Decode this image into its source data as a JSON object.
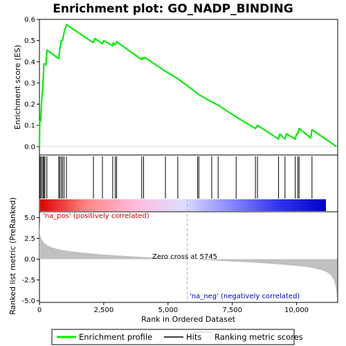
{
  "colors": {
    "es_line": "#00ee00",
    "hits": "#000000",
    "metric_fill": "#c0c0c0",
    "pos_text": "#cc0000",
    "neg_text": "#0000cc",
    "zero_line": "#b0b0b0"
  },
  "legend": {
    "items": [
      {
        "label": "Enrichment profile",
        "color": "#00ee00",
        "icon": "green-line"
      },
      {
        "label": "Hits",
        "color": "#000000",
        "icon": "black-line"
      },
      {
        "label": "Ranking metric scores",
        "color": "#c0c0c0",
        "icon": "gray-line"
      }
    ]
  },
  "chart_data": [
    {
      "type": "line",
      "panel": "enrichment",
      "title": "Enrichment plot: GO_NADP_BINDING",
      "ylabel": "Enrichment score (ES)",
      "xlim": [
        0,
        11600
      ],
      "ylim": [
        -0.04,
        0.6
      ],
      "yticks": [
        0.0,
        0.1,
        0.2,
        0.3,
        0.4,
        0.5,
        0.6
      ],
      "ytick_labels": [
        "0.0",
        "0.1",
        "0.2",
        "0.3",
        "0.4",
        "0.5",
        "0.6"
      ],
      "series": [
        {
          "x": [
            0,
            10,
            45,
            90,
            140,
            175,
            215,
            250,
            290,
            750,
            790,
            850,
            900,
            960,
            1050,
            2100,
            2150,
            2450,
            2500,
            2850,
            2870,
            2950,
            3000,
            3980,
            4000,
            4050,
            4100,
            4900,
            5380,
            6150,
            6200,
            6700,
            6950,
            7650,
            8400,
            8480,
            9300,
            9350,
            9550,
            9600,
            9950,
            10000,
            10050,
            10100,
            10550,
            10600,
            11550
          ],
          "y": [
            0.0,
            0.12,
            0.12,
            0.22,
            0.3,
            0.39,
            0.39,
            0.385,
            0.455,
            0.415,
            0.46,
            0.5,
            0.5,
            0.54,
            0.575,
            0.49,
            0.51,
            0.485,
            0.5,
            0.475,
            0.49,
            0.48,
            0.495,
            0.41,
            0.42,
            0.415,
            0.42,
            0.355,
            0.32,
            0.25,
            0.245,
            0.21,
            0.195,
            0.14,
            0.085,
            0.1,
            0.035,
            0.06,
            0.035,
            0.06,
            0.035,
            0.06,
            0.06,
            0.085,
            0.04,
            0.08,
            0.0
          ]
        }
      ]
    },
    {
      "type": "scatter",
      "panel": "hits",
      "ylabel": "",
      "xlim": [
        0,
        11600
      ],
      "hit_positions": [
        10,
        45,
        90,
        140,
        175,
        215,
        290,
        750,
        790,
        850,
        900,
        960,
        1050,
        2100,
        2450,
        2850,
        2950,
        3000,
        3980,
        4050,
        4900,
        5380,
        6150,
        6200,
        6700,
        6950,
        7650,
        8400,
        8480,
        9300,
        9550,
        9950,
        10050,
        10100,
        10600
      ],
      "gradient_stops": [
        "#dd0000",
        "#ff8888",
        "#ffbbdd",
        "#ddddff",
        "#8888ff",
        "#3333ee",
        "#0000cc"
      ]
    },
    {
      "type": "area",
      "panel": "ranked_metric",
      "xlabel": "Rank in Ordered Dataset",
      "ylabel": "Ranked list metric (PreRanked)",
      "xlim": [
        0,
        11600
      ],
      "ylim": [
        -5.2,
        5.7
      ],
      "xticks": [
        0,
        2500,
        5000,
        7500,
        10000
      ],
      "xtick_labels": [
        "0",
        "2,500",
        "5,000",
        "7,500",
        "10,000"
      ],
      "yticks": [
        -5.0,
        -2.5,
        0.0,
        2.5,
        5.0
      ],
      "ytick_labels": [
        "-5.0",
        "-2.5",
        "0.0",
        "2.5",
        "5.0"
      ],
      "series": [
        {
          "x": [
            0,
            20,
            60,
            120,
            200,
            350,
            500,
            800,
            1200,
            1800,
            2500,
            3500,
            4500,
            5745,
            6500,
            7500,
            8500,
            9200,
            9800,
            10300,
            10700,
            11000,
            11200,
            11350,
            11450,
            11520,
            11560,
            11580
          ],
          "y": [
            4.6,
            3.0,
            2.6,
            2.2,
            1.9,
            1.6,
            1.4,
            1.15,
            0.95,
            0.75,
            0.55,
            0.35,
            0.18,
            0.0,
            -0.12,
            -0.28,
            -0.45,
            -0.6,
            -0.75,
            -0.9,
            -1.1,
            -1.35,
            -1.6,
            -2.0,
            -2.5,
            -3.2,
            -4.2,
            -4.9
          ]
        }
      ],
      "zero_cross": 5745,
      "annotations": {
        "pos": "'na_pos' (positively correlated)",
        "neg": "'na_neg' (negatively correlated)",
        "zero": "Zero cross at 5745"
      }
    }
  ]
}
